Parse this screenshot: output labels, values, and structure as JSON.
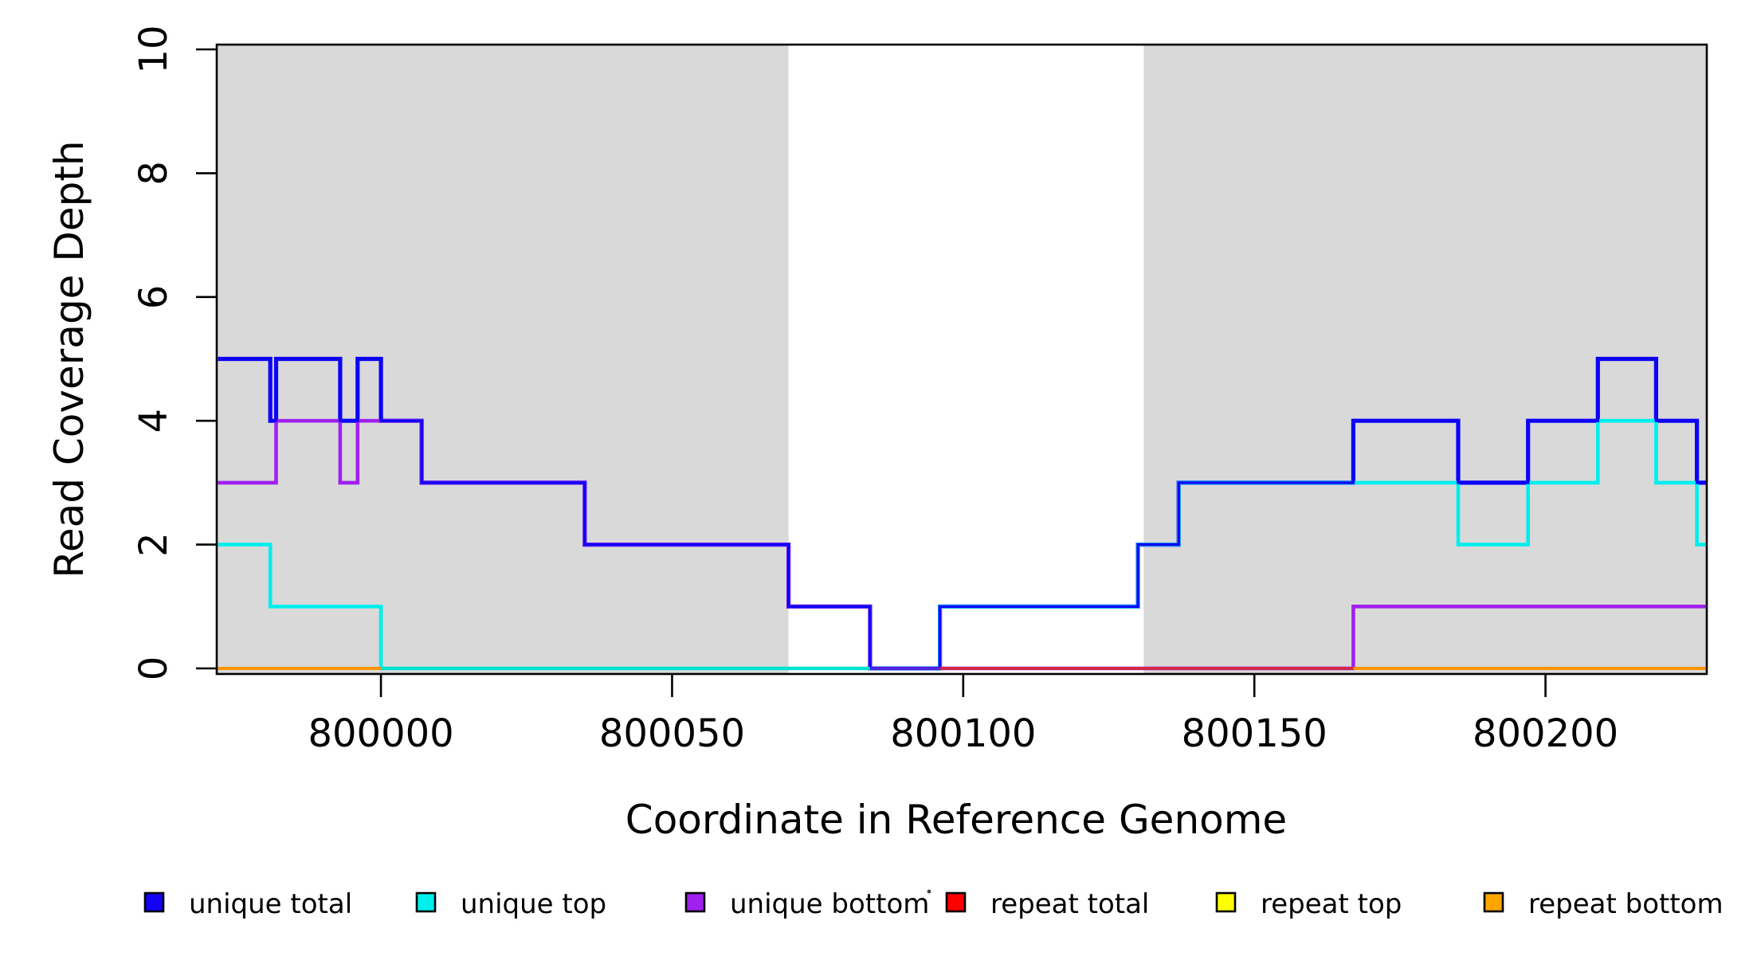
{
  "chart": {
    "xlabel": "Coordinate in Reference Genome",
    "ylabel": "Read Coverage Depth",
    "x_ticks": [
      "800000",
      "800050",
      "800100",
      "800150",
      "800200"
    ],
    "x_tick_values": [
      800000,
      800050,
      800100,
      800150,
      800200
    ],
    "y_ticks": [
      "0",
      "2",
      "4",
      "6",
      "8",
      "10"
    ],
    "y_tick_values": [
      0,
      2,
      4,
      6,
      8,
      10
    ],
    "shade_color": "#d9d9d9",
    "axis_color": "#000000"
  },
  "chart_data": {
    "type": "line",
    "step": "post",
    "title": "",
    "xlabel": "Coordinate in Reference Genome",
    "ylabel": "Read Coverage Depth",
    "xlim": [
      799971.8,
      800227.7
    ],
    "ylim": [
      0,
      10
    ],
    "grid": false,
    "legend_position": "bottom",
    "shaded_regions": [
      {
        "from": 799971.8,
        "to": 800070,
        "color": "#d9d9d9",
        "meaning": "shaded background block"
      },
      {
        "from": 800131,
        "to": 800227.7,
        "color": "#d9d9d9",
        "meaning": "shaded background block"
      }
    ],
    "series": [
      {
        "name": "unique total",
        "color": "#0d02f5",
        "steps": [
          [
            799972,
            5
          ],
          [
            799981,
            4
          ],
          [
            799982,
            5
          ],
          [
            799993,
            4
          ],
          [
            799996,
            5
          ],
          [
            800000,
            4
          ],
          [
            800007,
            3
          ],
          [
            800035,
            2
          ],
          [
            800070,
            1
          ],
          [
            800084,
            0
          ],
          [
            800096,
            1
          ],
          [
            800130,
            2
          ],
          [
            800137,
            3
          ],
          [
            800167,
            4
          ],
          [
            800185,
            3
          ],
          [
            800197,
            4
          ],
          [
            800209,
            5
          ],
          [
            800219,
            4
          ],
          [
            800226,
            3
          ],
          [
            800227.7,
            3
          ]
        ]
      },
      {
        "name": "unique top",
        "color": "#00eeee",
        "steps": [
          [
            799972,
            2
          ],
          [
            799981,
            1
          ],
          [
            800000,
            0
          ],
          [
            800096,
            1
          ],
          [
            800130,
            2
          ],
          [
            800137,
            3
          ],
          [
            800185,
            2
          ],
          [
            800197,
            3
          ],
          [
            800209,
            4
          ],
          [
            800219,
            3
          ],
          [
            800226,
            2
          ],
          [
            800227.7,
            2
          ]
        ]
      },
      {
        "name": "unique bottom",
        "color": "#a020f0",
        "steps": [
          [
            799972,
            3
          ],
          [
            799982,
            4
          ],
          [
            799993,
            3
          ],
          [
            799996,
            4
          ],
          [
            800007,
            3
          ],
          [
            800035,
            2
          ],
          [
            800070,
            1
          ],
          [
            800084,
            0
          ],
          [
            800167,
            1
          ],
          [
            800227.7,
            1
          ]
        ]
      },
      {
        "name": "repeat total",
        "color": "#ff0000",
        "steps": [
          [
            799972,
            0
          ],
          [
            800227.7,
            0
          ]
        ]
      },
      {
        "name": "repeat top",
        "color": "#ffff00",
        "steps": [
          [
            799972,
            0
          ],
          [
            800227.7,
            0
          ]
        ]
      },
      {
        "name": "repeat bottom",
        "color": "#ffa500",
        "steps": [
          [
            799972,
            0
          ],
          [
            800227.7,
            0
          ]
        ]
      }
    ],
    "baseline_visible_segments": [
      {
        "from": 799971.8,
        "to": 800000,
        "color": "#ff9400"
      },
      {
        "from": 800000,
        "to": 800084,
        "color": "#00e0ce"
      },
      {
        "from": 800084,
        "to": 800096,
        "color": "#4a22e0"
      },
      {
        "from": 800096,
        "to": 800167,
        "color": "#d2264f"
      },
      {
        "from": 800167,
        "to": 800227.7,
        "color": "#ff9400"
      }
    ]
  },
  "legend": {
    "items": [
      {
        "label": "unique total",
        "color": "#1203f5"
      },
      {
        "label": "unique top",
        "color": "#00eeee"
      },
      {
        "label": "unique bottom",
        "color": "#a020f0"
      },
      {
        "label": "repeat total",
        "color": "#ff0000"
      },
      {
        "label": "repeat top",
        "color": "#ffff00"
      },
      {
        "label": "repeat bottom",
        "color": "#ffa500"
      }
    ]
  }
}
